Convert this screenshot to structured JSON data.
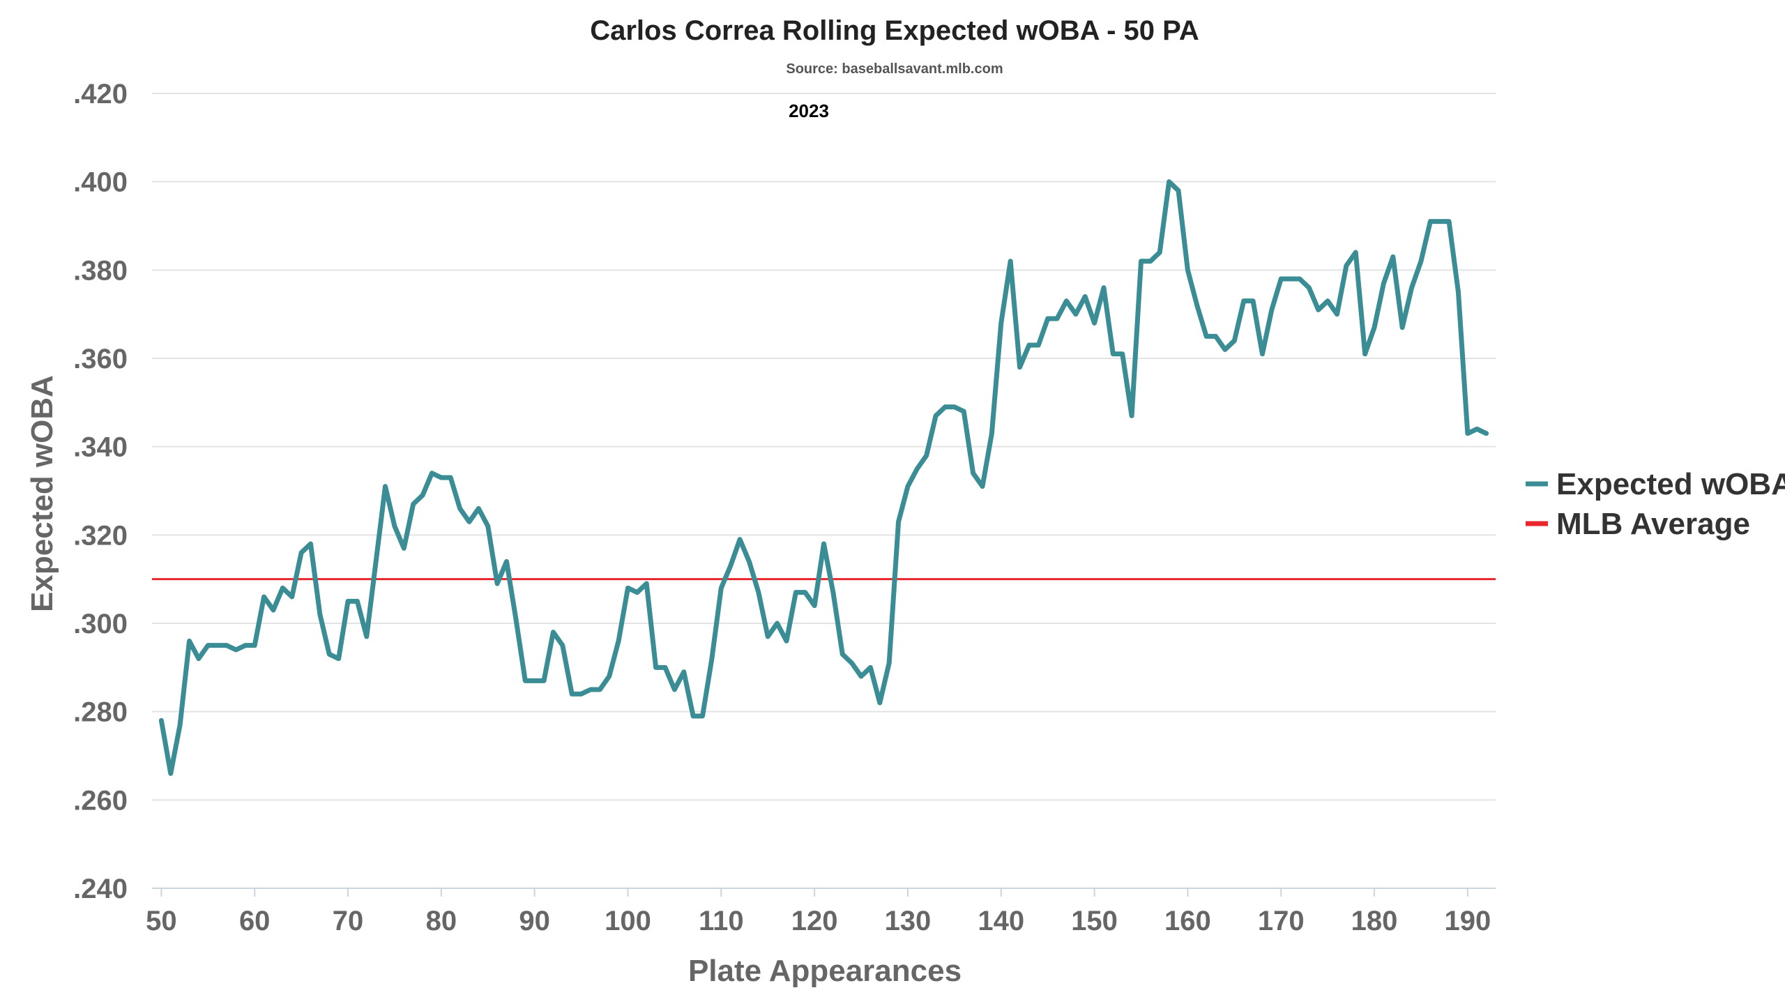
{
  "colors": {
    "series": "#3a8d94",
    "average": "#e8262b",
    "grid": "#e3e3e3",
    "tick_text": "#666666",
    "title_text": "#222222"
  },
  "chart_data": {
    "type": "line",
    "title": "Carlos Correa Rolling Expected wOBA - 50 PA",
    "subtitle": "Source: baseballsavant.mlb.com",
    "annotation": "2023",
    "xlabel": "Plate Appearances",
    "ylabel": "Expected wOBA",
    "xlim": [
      49,
      193
    ],
    "ylim": [
      0.24,
      0.42
    ],
    "x_ticks": [
      50,
      60,
      70,
      80,
      90,
      100,
      110,
      120,
      130,
      140,
      150,
      160,
      170,
      180,
      190
    ],
    "x_tick_labels": [
      "50",
      "60",
      "70",
      "80",
      "90",
      "100",
      "110",
      "120",
      "130",
      "140",
      "150",
      "160",
      "170",
      "180",
      "190"
    ],
    "y_ticks": [
      0.24,
      0.26,
      0.28,
      0.3,
      0.32,
      0.34,
      0.36,
      0.38,
      0.4,
      0.42
    ],
    "y_tick_labels": [
      ".240",
      ".260",
      ".280",
      ".300",
      ".320",
      ".340",
      ".360",
      ".380",
      ".400",
      ".420"
    ],
    "grid": true,
    "legend_position": "right",
    "legend": [
      "Expected wOBA",
      "MLB Average"
    ],
    "reference_line": {
      "name": "MLB Average",
      "y": 0.31
    },
    "series": [
      {
        "name": "Expected wOBA",
        "x": [
          50,
          51,
          52,
          53,
          54,
          55,
          56,
          57,
          58,
          59,
          60,
          61,
          62,
          63,
          64,
          65,
          66,
          67,
          68,
          69,
          70,
          71,
          72,
          73,
          74,
          75,
          76,
          77,
          78,
          79,
          80,
          81,
          82,
          83,
          84,
          85,
          86,
          87,
          88,
          89,
          90,
          91,
          92,
          93,
          94,
          95,
          96,
          97,
          98,
          99,
          100,
          101,
          102,
          103,
          104,
          105,
          106,
          107,
          108,
          109,
          110,
          111,
          112,
          113,
          114,
          115,
          116,
          117,
          118,
          119,
          120,
          121,
          122,
          123,
          124,
          125,
          126,
          127,
          128,
          129,
          130,
          131,
          132,
          133,
          134,
          135,
          136,
          137,
          138,
          139,
          140,
          141,
          142,
          143,
          144,
          145,
          146,
          147,
          148,
          149,
          150,
          151,
          152,
          153,
          154,
          155,
          156,
          157,
          158,
          159,
          160,
          161,
          162,
          163,
          164,
          165,
          166,
          167,
          168,
          169,
          170,
          171,
          172,
          173,
          174,
          175,
          176,
          177,
          178,
          179,
          180,
          181,
          182,
          183,
          184,
          185,
          186,
          187,
          188,
          189,
          190,
          191,
          192
        ],
        "y": [
          0.278,
          0.266,
          0.277,
          0.296,
          0.292,
          0.295,
          0.295,
          0.295,
          0.294,
          0.295,
          0.295,
          0.306,
          0.303,
          0.308,
          0.306,
          0.316,
          0.318,
          0.302,
          0.293,
          0.292,
          0.305,
          0.305,
          0.297,
          0.314,
          0.331,
          0.322,
          0.317,
          0.327,
          0.329,
          0.334,
          0.333,
          0.333,
          0.326,
          0.323,
          0.326,
          0.322,
          0.309,
          0.314,
          0.301,
          0.287,
          0.287,
          0.287,
          0.298,
          0.295,
          0.284,
          0.284,
          0.285,
          0.285,
          0.288,
          0.296,
          0.308,
          0.307,
          0.309,
          0.29,
          0.29,
          0.285,
          0.289,
          0.279,
          0.279,
          0.292,
          0.308,
          0.313,
          0.319,
          0.314,
          0.307,
          0.297,
          0.3,
          0.296,
          0.307,
          0.307,
          0.304,
          0.318,
          0.307,
          0.293,
          0.291,
          0.288,
          0.29,
          0.282,
          0.291,
          0.323,
          0.331,
          0.335,
          0.338,
          0.347,
          0.349,
          0.349,
          0.348,
          0.334,
          0.331,
          0.343,
          0.368,
          0.382,
          0.358,
          0.363,
          0.363,
          0.369,
          0.369,
          0.373,
          0.37,
          0.374,
          0.368,
          0.376,
          0.361,
          0.361,
          0.347,
          0.382,
          0.382,
          0.384,
          0.4,
          0.398,
          0.38,
          0.372,
          0.365,
          0.365,
          0.362,
          0.364,
          0.373,
          0.373,
          0.361,
          0.371,
          0.378,
          0.378,
          0.378,
          0.376,
          0.371,
          0.373,
          0.37,
          0.381,
          0.384,
          0.361,
          0.367,
          0.377,
          0.383,
          0.367,
          0.376,
          0.382,
          0.391,
          0.391,
          0.391,
          0.375,
          0.343,
          0.344,
          0.343
        ]
      }
    ]
  }
}
